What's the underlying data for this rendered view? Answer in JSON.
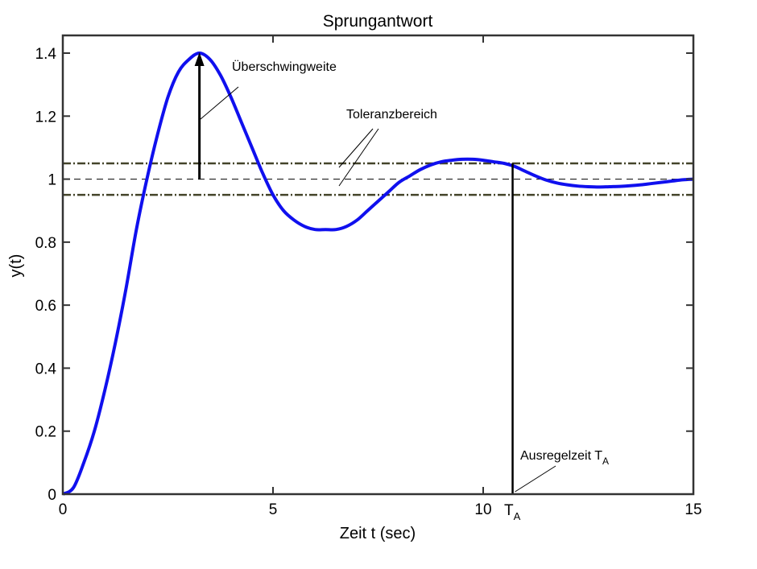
{
  "chart_data": {
    "type": "line",
    "title": "Sprungantwort",
    "xlabel": "Zeit t (sec)",
    "ylabel": "y(t)",
    "xlim": [
      0,
      15
    ],
    "ylim": [
      0,
      1.45
    ],
    "xticks": [
      "0",
      "5",
      "10",
      "15"
    ],
    "yticks": [
      "0",
      "0.2",
      "0.4",
      "0.6",
      "0.8",
      "1",
      "1.2",
      "1.4"
    ],
    "grid": false,
    "series": [
      {
        "x": [
          0,
          0.25,
          0.5,
          0.75,
          1.0,
          1.25,
          1.5,
          1.75,
          2.0,
          2.25,
          2.5,
          2.75,
          3.0,
          3.25,
          3.5,
          3.75,
          4.0,
          4.25,
          4.5,
          4.75,
          5.0,
          5.25,
          5.5,
          5.75,
          6.0,
          6.25,
          6.5,
          6.75,
          7.0,
          7.25,
          7.5,
          7.75,
          8.0,
          8.25,
          8.5,
          8.75,
          9.0,
          9.25,
          9.5,
          9.75,
          10.0,
          10.25,
          10.5,
          10.75,
          11.0,
          11.25,
          11.5,
          11.75,
          12.0,
          12.25,
          12.5,
          12.75,
          13.0,
          13.25,
          13.5,
          13.75,
          14.0,
          14.25,
          14.5,
          14.75,
          15.0
        ],
        "y": [
          0,
          0.02,
          0.1,
          0.2,
          0.33,
          0.48,
          0.65,
          0.84,
          1.0,
          1.14,
          1.26,
          1.34,
          1.38,
          1.4,
          1.38,
          1.33,
          1.26,
          1.18,
          1.1,
          1.02,
          0.95,
          0.9,
          0.87,
          0.85,
          0.84,
          0.84,
          0.84,
          0.85,
          0.87,
          0.9,
          0.93,
          0.96,
          0.99,
          1.01,
          1.03,
          1.045,
          1.055,
          1.06,
          1.063,
          1.063,
          1.06,
          1.055,
          1.05,
          1.04,
          1.025,
          1.01,
          0.997,
          0.988,
          0.982,
          0.978,
          0.976,
          0.975,
          0.976,
          0.977,
          0.979,
          0.982,
          0.986,
          0.99,
          0.994,
          0.998,
          1.0
        ],
        "color": "#1010ee"
      }
    ],
    "reference_lines": {
      "setpoint": 1.0,
      "tolerance_upper": 1.05,
      "tolerance_lower": 0.95
    },
    "overshoot_arrow": {
      "x": 3.25,
      "y_from": 1.0,
      "y_to": 1.4
    },
    "settling_time": {
      "x": 10.7,
      "y": 1.05
    },
    "annotations": {
      "overshoot": "Überschwingweite",
      "tolerance": "Toleranzbereich",
      "settling_prefix": "Ausregelzeit T",
      "settling_sub": "A",
      "ta_main": "T",
      "ta_sub": "A"
    }
  }
}
